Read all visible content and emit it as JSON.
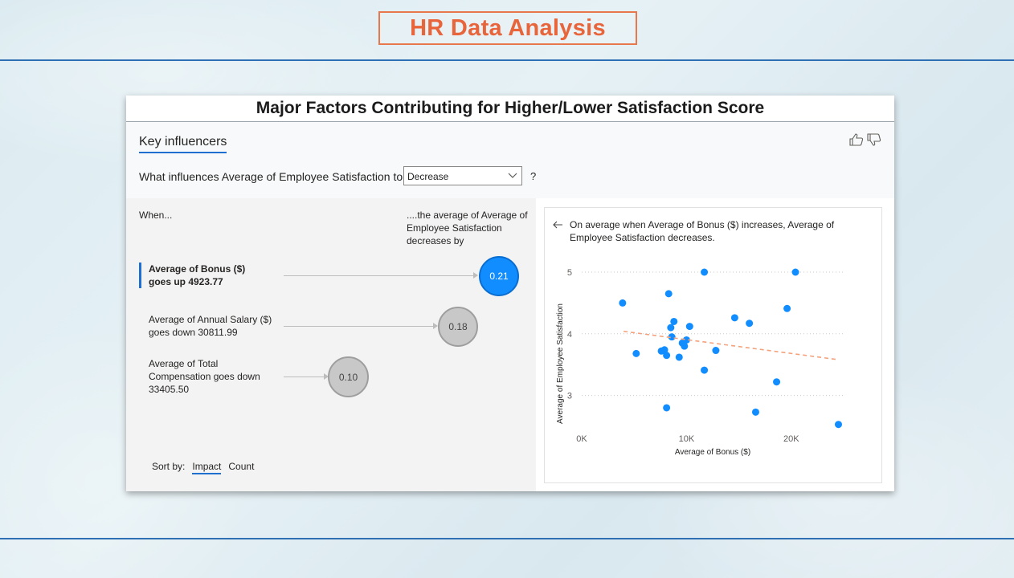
{
  "page": {
    "title": "HR Data Analysis"
  },
  "panel": {
    "title": "Major Factors Contributing for Higher/Lower Satisfaction Score"
  },
  "key_influencers": {
    "tab_label": "Key influencers",
    "question_prefix": "What influences Average of Employee Satisfaction to",
    "dropdown_value": "Decrease",
    "question_suffix": "?",
    "when_label": "When...",
    "effect_header": "....the average of Average of Employee Satisfaction decreases by",
    "influencers": [
      {
        "label": "Average of Bonus ($) goes up 4923.77",
        "value": "0.21",
        "selected": true
      },
      {
        "label": "Average of Annual Salary ($) goes down 30811.99",
        "value": "0.18",
        "selected": false
      },
      {
        "label": "Average of Total Compensation goes down 33405.50",
        "value": "0.10",
        "selected": false
      }
    ],
    "sort_by_label": "Sort by:",
    "sort_options": [
      "Impact",
      "Count"
    ],
    "active_sort": "Impact",
    "explanation": "On average when Average of Bonus ($) increases, Average of Employee Satisfaction decreases."
  },
  "colors": {
    "accent": "#118dff",
    "title": "#e8643b",
    "trend": "#f4a27c",
    "rule": "#2f6fb3"
  },
  "icons": [
    "thumbs-up-icon",
    "thumbs-down-icon",
    "chevron-down-icon",
    "back-arrow-icon"
  ],
  "chart_data": {
    "type": "scatter",
    "xlabel": "Average of Bonus ($)",
    "ylabel": "Average of Employee Satisfaction",
    "xticks": [
      "0K",
      "10K",
      "20K"
    ],
    "yticks": [
      "3",
      "4",
      "5"
    ],
    "xlim": [
      0,
      25000
    ],
    "ylim": [
      2.5,
      5
    ],
    "grid": true,
    "points": [
      [
        3900,
        4.5
      ],
      [
        5200,
        3.68
      ],
      [
        7600,
        3.72
      ],
      [
        7900,
        3.74
      ],
      [
        8100,
        3.65
      ],
      [
        8300,
        4.65
      ],
      [
        8500,
        4.1
      ],
      [
        8600,
        3.95
      ],
      [
        8800,
        4.2
      ],
      [
        9300,
        3.62
      ],
      [
        9600,
        3.85
      ],
      [
        9800,
        3.8
      ],
      [
        10000,
        3.9
      ],
      [
        10300,
        4.12
      ],
      [
        11700,
        5.0
      ],
      [
        11700,
        3.41
      ],
      [
        12800,
        3.73
      ],
      [
        14600,
        4.26
      ],
      [
        16000,
        4.17
      ],
      [
        16600,
        2.73
      ],
      [
        18600,
        3.22
      ],
      [
        19600,
        4.41
      ],
      [
        20400,
        5.0
      ],
      [
        24500,
        2.53
      ],
      [
        8100,
        2.8
      ]
    ],
    "trendline": {
      "x": [
        4000,
        24500
      ],
      "y": [
        4.04,
        3.58
      ]
    }
  }
}
